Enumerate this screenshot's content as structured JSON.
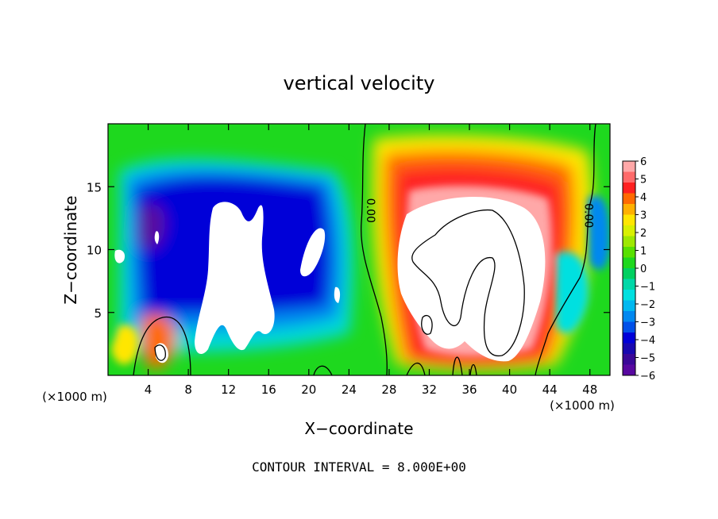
{
  "chart_data": {
    "type": "heatmap",
    "title": "vertical velocity",
    "xlabel": "X−coordinate",
    "ylabel": "Z−coordinate",
    "x_unit": "(×1000 m)",
    "x_unit_right": "(×1000 m)",
    "footer": "CONTOUR INTERVAL = 8.000E+00",
    "xlim": [
      0,
      50
    ],
    "ylim": [
      0,
      20
    ],
    "x_ticks": [
      "4",
      "8",
      "12",
      "16",
      "20",
      "24",
      "28",
      "32",
      "36",
      "40",
      "44",
      "48"
    ],
    "x_tick_values": [
      4,
      8,
      12,
      16,
      20,
      24,
      28,
      32,
      36,
      40,
      44,
      48
    ],
    "y_ticks": [
      "5",
      "10",
      "15"
    ],
    "y_tick_values": [
      5,
      10,
      15
    ],
    "contour_labels": [
      {
        "text": "0.00",
        "x": 25.8,
        "z": 13.1
      },
      {
        "text": "0.00",
        "x": 47.5,
        "z": 12.7
      }
    ],
    "colorbar": {
      "range": [
        -6,
        6
      ],
      "labels": [
        "6",
        "5",
        "4",
        "3",
        "2",
        "1",
        "0",
        "−1",
        "−2",
        "−3",
        "−4",
        "−5",
        "−6"
      ],
      "colors": [
        "#ffa8a8",
        "#ff6a6a",
        "#ff2020",
        "#ff6a00",
        "#ffb000",
        "#ffe600",
        "#d8f000",
        "#9ee800",
        "#58e000",
        "#1ed81e",
        "#00d060",
        "#00d8a8",
        "#00e0e0",
        "#00b8f0",
        "#0088f0",
        "#0050e8",
        "#0000d8",
        "#1808b0",
        "#3a0898",
        "#5808a0"
      ]
    },
    "features": [
      {
        "name": "updraft-core-right",
        "sign": "positive",
        "x_range": [
          29,
          45
        ],
        "z_range": [
          1,
          14
        ]
      },
      {
        "name": "downdraft-left",
        "sign": "negative",
        "x_range": [
          1,
          24
        ],
        "z_range": [
          3,
          16
        ]
      },
      {
        "name": "updraft-small-left",
        "sign": "positive",
        "x_center": 5.2,
        "z_center": 2.2
      }
    ]
  }
}
